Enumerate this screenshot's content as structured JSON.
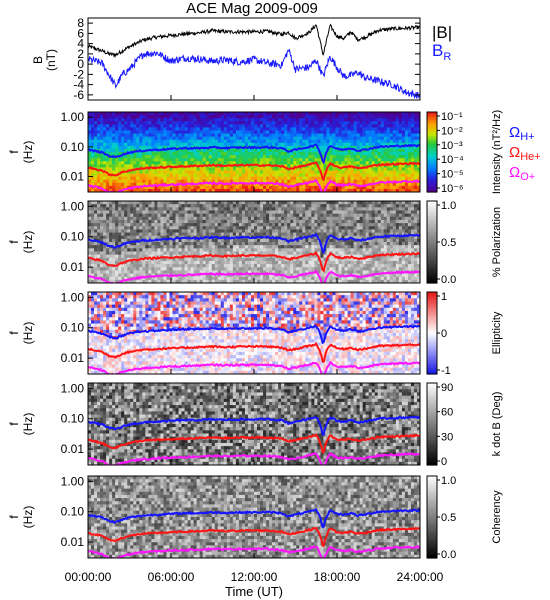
{
  "title": "ACE Mag 2009-009",
  "xaxis": {
    "label": "Time (UT)",
    "ticks": [
      "00:00:00",
      "06:00:00",
      "12:00:00",
      "18:00:00",
      "24:00:00"
    ],
    "tick_hours": [
      0,
      6,
      12,
      18,
      24
    ],
    "range_hours": [
      0,
      24
    ]
  },
  "colors": {
    "B_total": "#000000",
    "B_R": "#1a1aff",
    "H_plus": "#1414ff",
    "He_plus": "#ff1414",
    "O_plus": "#ff14ff"
  },
  "panel_b": {
    "ylabel": [
      "B",
      "(nT)"
    ],
    "yticks": [
      "8",
      "6",
      "4",
      "2",
      "0",
      "-2",
      "-4",
      "-6"
    ],
    "ytick_values": [
      8,
      6,
      4,
      2,
      0,
      -2,
      -4,
      -6
    ],
    "ylim": [
      -7,
      9
    ],
    "legend": [
      {
        "text": "|B|",
        "color_key": "B_total"
      },
      {
        "text": "B",
        "sub": "R",
        "color_key": "B_R"
      }
    ]
  },
  "spectral_panels": [
    {
      "id": "intensity",
      "cbar_label": "Intensity (nT²/Hz)",
      "cbar_ticks": [
        "10⁻¹",
        "10⁻²",
        "10⁻³",
        "10⁻⁴",
        "10⁻⁵",
        "10⁻⁶"
      ],
      "cmap": "rainbow"
    },
    {
      "id": "polarization",
      "cbar_label": "% Polarization",
      "cbar_ticks": [
        "1.0",
        "0.5",
        "0.0"
      ],
      "cmap": "gray"
    },
    {
      "id": "ellipticity",
      "cbar_label": "Ellipticity",
      "cbar_ticks": [
        "1",
        "0",
        "-1"
      ],
      "cmap": "bwr"
    },
    {
      "id": "kdotb",
      "cbar_label": "k dot B (Deg)",
      "cbar_ticks": [
        "90",
        "60",
        "30",
        "0"
      ],
      "cmap": "gray"
    },
    {
      "id": "coherency",
      "cbar_label": "Coherency",
      "cbar_ticks": [
        "1.0",
        "0.5",
        "0.0"
      ],
      "cmap": "gray"
    }
  ],
  "spectral_yaxis": {
    "ylabel": [
      "f",
      "(Hz)"
    ],
    "yticks": [
      "1.00",
      "0.10",
      "0.01"
    ],
    "ytick_values": [
      1.0,
      0.1,
      0.01
    ],
    "ylim": [
      0.003,
      1.5
    ],
    "scale": "log"
  },
  "gyro_legend": [
    {
      "symbol": "Ω",
      "sub": "H+",
      "color_key": "H_plus"
    },
    {
      "symbol": "Ω",
      "sub": "He+",
      "color_key": "He_plus"
    },
    {
      "symbol": "Ω",
      "sub": "O+",
      "color_key": "O_plus"
    }
  ],
  "chart_data": {
    "type": "line",
    "title": "ACE Mag 2009-009",
    "xlabel": "Time (UT)",
    "x_hours": [
      0,
      1,
      1.5,
      2,
      2.5,
      3,
      4,
      5,
      6,
      7,
      8,
      9,
      10,
      11,
      12,
      13,
      14,
      14.5,
      15,
      16,
      16.5,
      17,
      17.5,
      18,
      18.5,
      19,
      19.5,
      20,
      21,
      22,
      23,
      24
    ],
    "series": [
      {
        "name": "|B|",
        "values": [
          3.5,
          2.6,
          2.0,
          1.8,
          2.6,
          3.4,
          4.7,
          5.3,
          5.6,
          5.9,
          6.1,
          6.5,
          6.3,
          6.3,
          6.3,
          6.4,
          5.8,
          6.2,
          5.0,
          6.2,
          7.7,
          1.8,
          7.5,
          5.5,
          5.0,
          6.3,
          4.8,
          5.2,
          6.6,
          6.9,
          7.0,
          7.2
        ]
      },
      {
        "name": "B_R",
        "values": [
          1.0,
          0.2,
          -2.0,
          -4.3,
          -2.0,
          -1.0,
          2.0,
          2.2,
          0.6,
          1.2,
          1.0,
          0.6,
          0.8,
          0.4,
          0.9,
          0.2,
          -0.2,
          2.8,
          -1.0,
          -0.6,
          0.8,
          -2.4,
          1.5,
          -0.6,
          -2.4,
          -2.2,
          -1.6,
          -2.6,
          -3.3,
          -4.0,
          -5.5,
          -6.2
        ]
      },
      {
        "name": "Ω H+",
        "values": [
          0.08,
          0.065,
          0.05,
          0.045,
          0.055,
          0.065,
          0.075,
          0.08,
          0.085,
          0.09,
          0.09,
          0.095,
          0.092,
          0.095,
          0.095,
          0.097,
          0.09,
          0.07,
          0.08,
          0.1,
          0.115,
          0.025,
          0.11,
          0.085,
          0.08,
          0.09,
          0.075,
          0.08,
          0.1,
          0.105,
          0.11,
          0.11
        ]
      },
      {
        "name": "Ω He+",
        "values": [
          0.02,
          0.016,
          0.012,
          0.011,
          0.014,
          0.016,
          0.019,
          0.02,
          0.021,
          0.022,
          0.023,
          0.024,
          0.023,
          0.024,
          0.024,
          0.024,
          0.022,
          0.018,
          0.02,
          0.025,
          0.029,
          0.006,
          0.028,
          0.021,
          0.02,
          0.022,
          0.019,
          0.02,
          0.025,
          0.026,
          0.027,
          0.028
        ]
      },
      {
        "name": "Ω O+",
        "values": [
          0.005,
          0.004,
          0.003,
          0.0028,
          0.0035,
          0.004,
          0.0047,
          0.005,
          0.0053,
          0.0055,
          0.0057,
          0.006,
          0.0058,
          0.006,
          0.006,
          0.006,
          0.0055,
          0.0045,
          0.005,
          0.0062,
          0.0072,
          0.0018,
          0.007,
          0.0053,
          0.005,
          0.0055,
          0.0048,
          0.005,
          0.0062,
          0.0065,
          0.0068,
          0.007
        ]
      }
    ]
  }
}
